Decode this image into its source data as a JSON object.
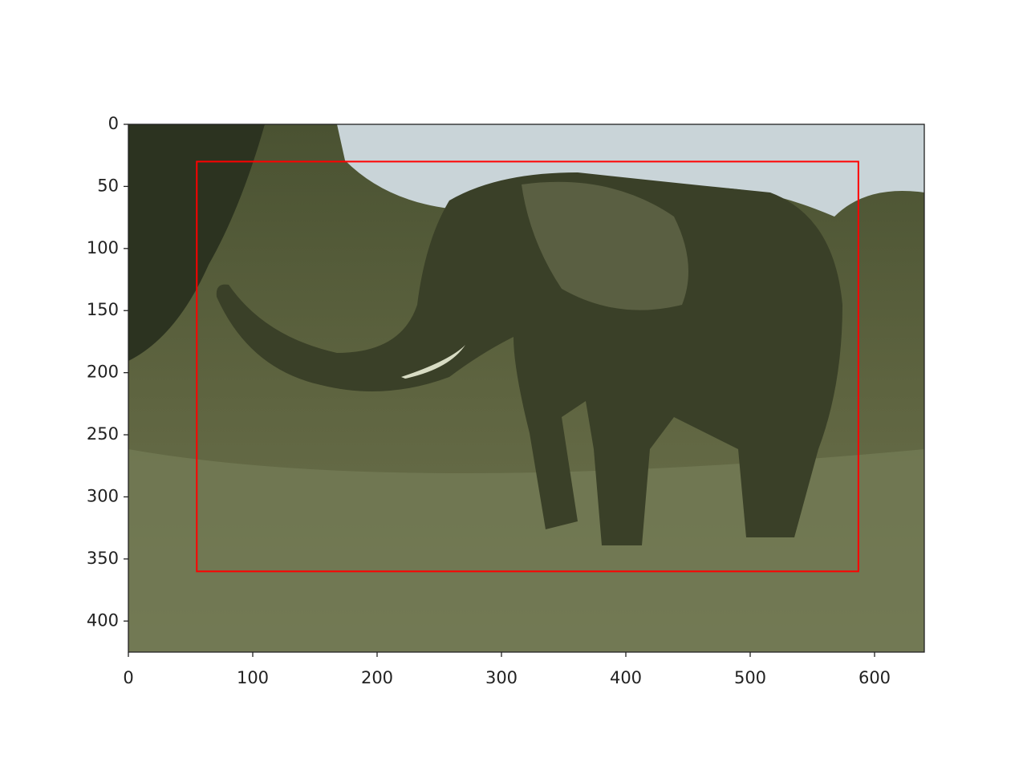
{
  "chart_data": {
    "type": "image",
    "xlim": [
      0,
      640
    ],
    "ylim": [
      425,
      0
    ],
    "xticks": [
      0,
      100,
      200,
      300,
      400,
      500,
      600
    ],
    "yticks": [
      0,
      50,
      100,
      150,
      200,
      250,
      300,
      350,
      400
    ],
    "boxes": [
      {
        "xmin": 55,
        "ymin": 30,
        "xmax": 587,
        "ymax": 360,
        "color": "#ff0000"
      }
    ]
  }
}
